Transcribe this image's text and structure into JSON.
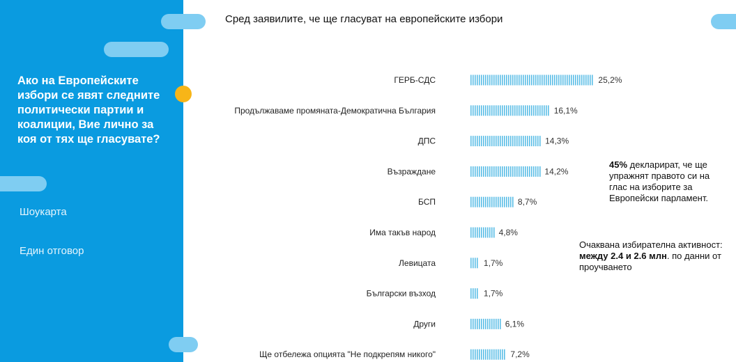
{
  "question": "Ако на Европейските избори се явят следните политически партии и коалиции, Вие лично за коя от тях ще гласувате?",
  "sidebar_links": [
    "Шоукарта",
    "Един отговор"
  ],
  "chart_data": {
    "type": "bar",
    "orientation": "horizontal",
    "title": "Сред заявилите, че ще гласуват на европейските избори",
    "categories": [
      "ГЕРБ-СДС",
      "Продължаваме промяната-Демократична България",
      "ДПС",
      "Възраждане",
      "БСП",
      "Има такъв народ",
      "Левицата",
      "Български възход",
      "Други",
      "Ще отбележа опцията \"Не подкрепям никого\""
    ],
    "values": [
      25.2,
      16.1,
      14.3,
      14.2,
      8.7,
      4.8,
      1.7,
      1.7,
      6.1,
      7.2
    ],
    "value_labels": [
      "25,2%",
      "16,1%",
      "14,3%",
      "14,2%",
      "8,7%",
      "4,8%",
      "1,7%",
      "1,7%",
      "6,1%",
      "7,2%"
    ],
    "bar_color": "#5bbde6",
    "grid": false,
    "legend": "none"
  },
  "note1": {
    "bold": "45%",
    "text": " декларират, че ще упражнят правото си на глас на изборите за Европейски парламент."
  },
  "note2": {
    "text1": "Очаквана избирателна активност: ",
    "bold": "между 2.4 и 2.6 млн",
    "text2": ". по данни от проучването"
  },
  "colors": {
    "sidebar": "#0a9be0",
    "pill": "#7fcdf2",
    "accent": "#f7b518",
    "bar": "#5bbde6"
  }
}
